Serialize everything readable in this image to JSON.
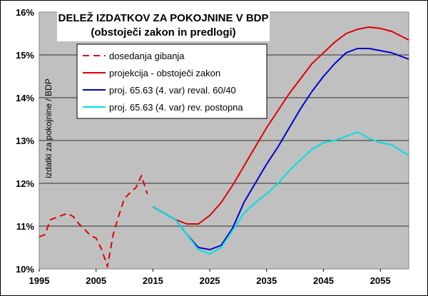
{
  "chart_data": {
    "type": "line",
    "title": "DELEŽ IZDATKOV ZA POKOJNINE V BDP",
    "subtitle": "(obstoječi zakon in predlogi)",
    "xlabel": "",
    "ylabel": "izdatki za pokojnine / BDP",
    "xlim": [
      1995,
      2060
    ],
    "ylim": [
      10,
      16
    ],
    "x_ticks": [
      1995,
      2005,
      2015,
      2025,
      2035,
      2045,
      2055
    ],
    "y_ticks": [
      10,
      11,
      12,
      13,
      14,
      15,
      16
    ],
    "y_tick_labels": [
      "10%",
      "11%",
      "12%",
      "13%",
      "14%",
      "15%",
      "16%"
    ],
    "grid": "horizontal",
    "legend_position": "top-left",
    "background_color": "#c0c0c0",
    "series": [
      {
        "name": "dosedanja gibanja",
        "color": "#e00000",
        "style": "dashed",
        "x": [
          1995,
          1996,
          1997,
          1998,
          1999,
          2000,
          2001,
          2002,
          2003,
          2004,
          2005,
          2006,
          2007,
          2008,
          2009,
          2010,
          2011,
          2012,
          2013,
          2014
        ],
        "y": [
          10.75,
          10.8,
          11.15,
          11.2,
          11.25,
          11.3,
          11.22,
          11.05,
          10.92,
          10.78,
          10.72,
          10.45,
          10.05,
          10.8,
          11.25,
          11.65,
          11.78,
          11.9,
          12.18,
          11.75
        ]
      },
      {
        "name": "projekcija - obstoječi zakon",
        "color": "#e00000",
        "style": "solid",
        "x": [
          2015,
          2017,
          2019,
          2021,
          2023,
          2025,
          2027,
          2029,
          2031,
          2033,
          2035,
          2037,
          2039,
          2041,
          2043,
          2045,
          2047,
          2049,
          2051,
          2053,
          2055,
          2057,
          2060
        ],
        "y": [
          11.45,
          11.3,
          11.15,
          11.05,
          11.05,
          11.25,
          11.55,
          11.95,
          12.4,
          12.85,
          13.3,
          13.7,
          14.1,
          14.45,
          14.8,
          15.05,
          15.3,
          15.5,
          15.6,
          15.65,
          15.62,
          15.55,
          15.35
        ]
      },
      {
        "name": "proj. 65.63 (4. var) reval. 60/40",
        "color": "#0000cc",
        "style": "solid",
        "x": [
          2015,
          2017,
          2019,
          2021,
          2023,
          2025,
          2027,
          2029,
          2031,
          2033,
          2035,
          2037,
          2039,
          2041,
          2043,
          2045,
          2047,
          2049,
          2051,
          2053,
          2055,
          2057,
          2060
        ],
        "y": [
          11.45,
          11.3,
          11.15,
          10.8,
          10.5,
          10.45,
          10.55,
          10.95,
          11.55,
          12.0,
          12.45,
          12.85,
          13.3,
          13.75,
          14.15,
          14.5,
          14.8,
          15.05,
          15.15,
          15.15,
          15.1,
          15.05,
          14.9
        ]
      },
      {
        "name": "proj. 65.63 (4. var) rev. postopna",
        "color": "#00e0e0",
        "style": "solid",
        "x": [
          2015,
          2017,
          2019,
          2021,
          2023,
          2025,
          2027,
          2029,
          2031,
          2033,
          2035,
          2037,
          2039,
          2041,
          2043,
          2045,
          2047,
          2049,
          2051,
          2053,
          2055,
          2057,
          2060
        ],
        "y": [
          11.45,
          11.3,
          11.15,
          10.8,
          10.45,
          10.35,
          10.5,
          10.9,
          11.3,
          11.55,
          11.75,
          12.0,
          12.3,
          12.55,
          12.8,
          12.95,
          13.0,
          13.1,
          13.2,
          13.05,
          12.95,
          12.9,
          12.65
        ]
      }
    ]
  }
}
